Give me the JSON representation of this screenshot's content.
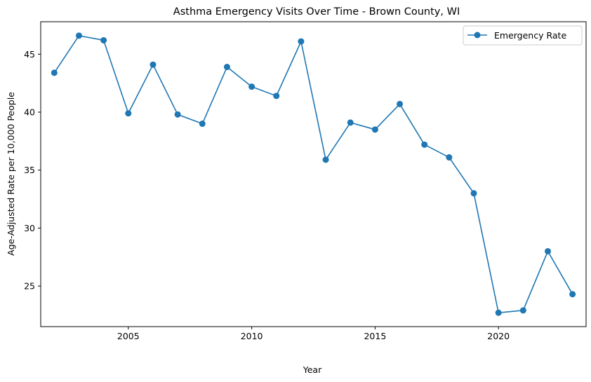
{
  "chart_data": {
    "type": "line",
    "title": "Asthma Emergency Visits Over Time - Brown County, WI",
    "xlabel": "Year",
    "ylabel": "Age-Adjusted Rate per 10,000 People",
    "xlim": [
      2001.45,
      2023.55
    ],
    "ylim": [
      21.5,
      47.8
    ],
    "xticks": [
      2005,
      2010,
      2015,
      2020
    ],
    "yticks": [
      25,
      30,
      35,
      40,
      45
    ],
    "grid": false,
    "legend_position": "top-right",
    "series": [
      {
        "name": "Emergency Rate",
        "color": "#1f77b4",
        "marker": "circle",
        "x": [
          2002,
          2003,
          2004,
          2005,
          2006,
          2007,
          2008,
          2009,
          2010,
          2011,
          2012,
          2013,
          2014,
          2015,
          2016,
          2017,
          2018,
          2019,
          2020,
          2021,
          2022,
          2023
        ],
        "y": [
          43.4,
          46.6,
          46.2,
          39.9,
          44.1,
          39.8,
          39.0,
          43.9,
          42.2,
          41.4,
          46.1,
          35.9,
          39.1,
          38.5,
          40.7,
          37.2,
          36.1,
          33.0,
          22.7,
          22.9,
          28.0,
          24.3
        ]
      }
    ]
  }
}
